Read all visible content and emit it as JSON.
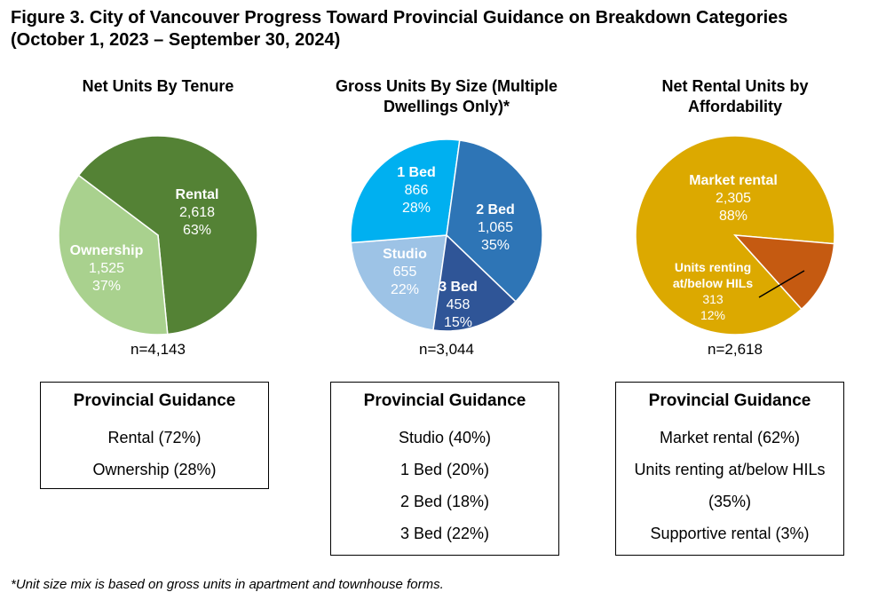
{
  "title": "Figure 3. City of Vancouver Progress Toward Provincial Guidance on Breakdown Categories (October 1, 2023 – September 30, 2024)",
  "footnote": "*Unit size mix is based on gross units in apartment and townhouse forms.",
  "chart_data": [
    {
      "type": "pie",
      "title": "Net Units By Tenure",
      "categories": [
        "Rental",
        "Ownership"
      ],
      "values": [
        2618,
        1525
      ],
      "value_labels": [
        "2,618",
        "1,525"
      ],
      "percent_labels": [
        "63%",
        "37%"
      ],
      "colors": [
        "#548235",
        "#a9d18e"
      ],
      "n_label": "n=4,143",
      "guidance_title": "Provincial Guidance",
      "guidance_items": [
        "Rental (72%)",
        "Ownership (28%)"
      ]
    },
    {
      "type": "pie",
      "title": "Gross Units By Size (Multiple Dwellings Only)*",
      "categories": [
        "Studio",
        "1 Bed",
        "2 Bed",
        "3 Bed"
      ],
      "values": [
        655,
        866,
        1065,
        458
      ],
      "value_labels": [
        "655",
        "866",
        "1,065",
        "458"
      ],
      "percent_labels": [
        "22%",
        "28%",
        "35%",
        "15%"
      ],
      "colors": [
        "#9dc3e6",
        "#00b0f0",
        "#2e75b6",
        "#2f5597"
      ],
      "n_label": "n=3,044",
      "guidance_title": "Provincial Guidance",
      "guidance_items": [
        "Studio (40%)",
        "1 Bed (20%)",
        "2 Bed (18%)",
        "3 Bed (22%)"
      ]
    },
    {
      "type": "pie",
      "title": "Net Rental Units by Affordability",
      "categories": [
        "Market rental",
        "Units renting at/below HILs"
      ],
      "values": [
        2305,
        313
      ],
      "value_labels": [
        "2,305",
        "313"
      ],
      "percent_labels": [
        "88%",
        "12%"
      ],
      "colors": [
        "#dca900",
        "#c55a11"
      ],
      "n_label": "n=2,618",
      "guidance_title": "Provincial Guidance",
      "guidance_items": [
        "Market rental (62%)",
        "Units renting at/below HILs (35%)",
        "Supportive rental (3%)"
      ]
    }
  ]
}
